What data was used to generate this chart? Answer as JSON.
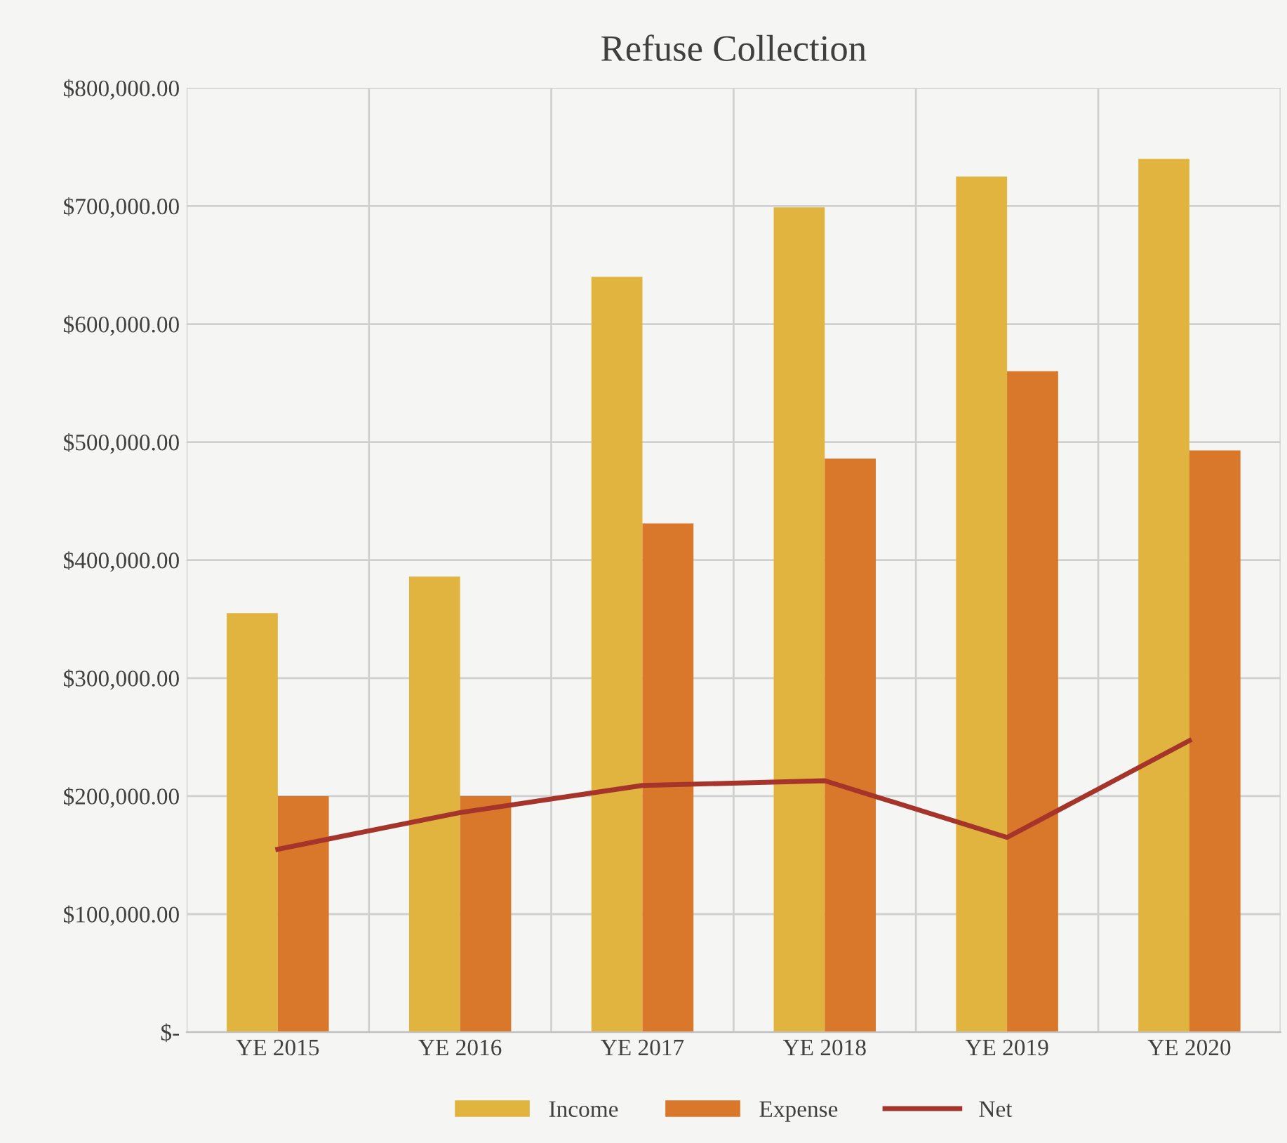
{
  "chart_data": {
    "type": "bar",
    "title": "Refuse Collection",
    "categories": [
      "YE 2015",
      "YE 2016",
      "YE 2017",
      "YE 2018",
      "YE 2019",
      "YE 2020"
    ],
    "series": [
      {
        "name": "Income",
        "color": "#e0b43f",
        "values": [
          355000,
          386000,
          640000,
          699000,
          725000,
          740000
        ]
      },
      {
        "name": "Expense",
        "color": "#d9772b",
        "values": [
          200000,
          200000,
          431000,
          486000,
          560000,
          493000
        ]
      },
      {
        "name": "Net",
        "type": "line",
        "color": "#a5352b",
        "values": [
          155000,
          186000,
          209000,
          213000,
          165000,
          247000
        ]
      }
    ],
    "ylim": [
      0,
      800000
    ],
    "yticks": [
      {
        "value": 0,
        "label": "$-"
      },
      {
        "value": 100000,
        "label": "$100,000.00"
      },
      {
        "value": 200000,
        "label": "$200,000.00"
      },
      {
        "value": 300000,
        "label": "$300,000.00"
      },
      {
        "value": 400000,
        "label": "$400,000.00"
      },
      {
        "value": 500000,
        "label": "$500,000.00"
      },
      {
        "value": 600000,
        "label": "$600,000.00"
      },
      {
        "value": 700000,
        "label": "$700,000.00"
      },
      {
        "value": 800000,
        "label": "$800,000.00"
      }
    ],
    "grid": true,
    "legend": "bottom",
    "marker": "none",
    "line_style": "solid"
  }
}
